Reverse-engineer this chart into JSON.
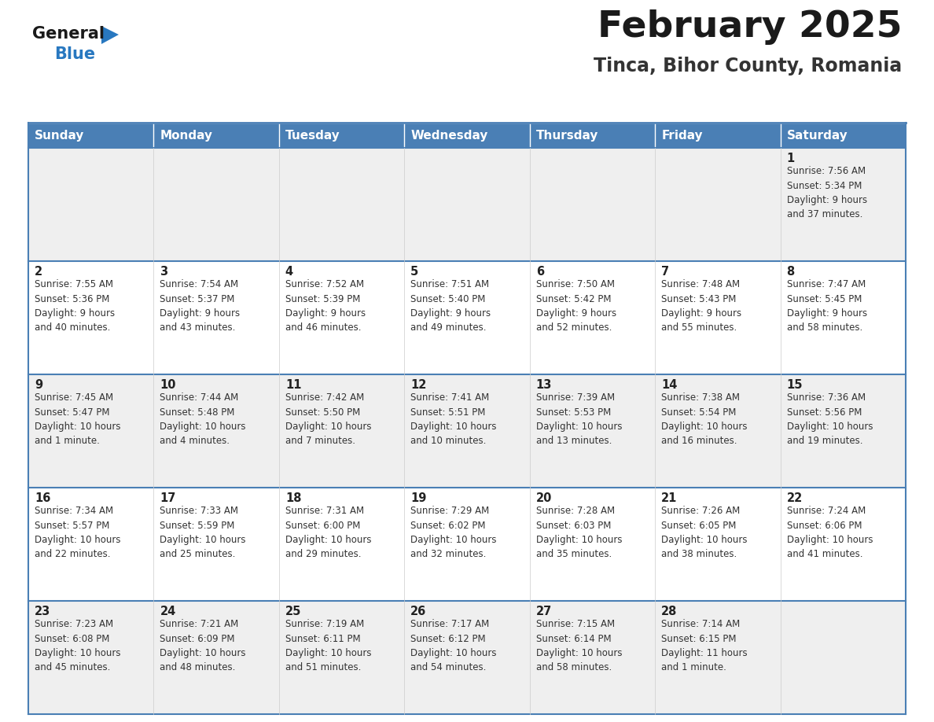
{
  "title": "February 2025",
  "subtitle": "Tinca, Bihor County, Romania",
  "days_of_week": [
    "Sunday",
    "Monday",
    "Tuesday",
    "Wednesday",
    "Thursday",
    "Friday",
    "Saturday"
  ],
  "header_bg": "#4a7fb5",
  "header_text": "#ffffff",
  "row0_bg": "#efefef",
  "row1_bg": "#ffffff",
  "row2_bg": "#efefef",
  "row3_bg": "#ffffff",
  "row4_bg": "#efefef",
  "border_color": "#4a7fb5",
  "day_number_color": "#222222",
  "info_text_color": "#333333",
  "title_color": "#1a1a1a",
  "subtitle_color": "#333333",
  "logo_general_color": "#1a1a1a",
  "logo_blue_color": "#2878c0",
  "logo_triangle_color": "#2878c0",
  "calendar_data": [
    {
      "day": 1,
      "row": 0,
      "col": 6,
      "sunrise": "7:56 AM",
      "sunset": "5:34 PM",
      "daylight": "9 hours\nand 37 minutes."
    },
    {
      "day": 2,
      "row": 1,
      "col": 0,
      "sunrise": "7:55 AM",
      "sunset": "5:36 PM",
      "daylight": "9 hours\nand 40 minutes."
    },
    {
      "day": 3,
      "row": 1,
      "col": 1,
      "sunrise": "7:54 AM",
      "sunset": "5:37 PM",
      "daylight": "9 hours\nand 43 minutes."
    },
    {
      "day": 4,
      "row": 1,
      "col": 2,
      "sunrise": "7:52 AM",
      "sunset": "5:39 PM",
      "daylight": "9 hours\nand 46 minutes."
    },
    {
      "day": 5,
      "row": 1,
      "col": 3,
      "sunrise": "7:51 AM",
      "sunset": "5:40 PM",
      "daylight": "9 hours\nand 49 minutes."
    },
    {
      "day": 6,
      "row": 1,
      "col": 4,
      "sunrise": "7:50 AM",
      "sunset": "5:42 PM",
      "daylight": "9 hours\nand 52 minutes."
    },
    {
      "day": 7,
      "row": 1,
      "col": 5,
      "sunrise": "7:48 AM",
      "sunset": "5:43 PM",
      "daylight": "9 hours\nand 55 minutes."
    },
    {
      "day": 8,
      "row": 1,
      "col": 6,
      "sunrise": "7:47 AM",
      "sunset": "5:45 PM",
      "daylight": "9 hours\nand 58 minutes."
    },
    {
      "day": 9,
      "row": 2,
      "col": 0,
      "sunrise": "7:45 AM",
      "sunset": "5:47 PM",
      "daylight": "10 hours\nand 1 minute."
    },
    {
      "day": 10,
      "row": 2,
      "col": 1,
      "sunrise": "7:44 AM",
      "sunset": "5:48 PM",
      "daylight": "10 hours\nand 4 minutes."
    },
    {
      "day": 11,
      "row": 2,
      "col": 2,
      "sunrise": "7:42 AM",
      "sunset": "5:50 PM",
      "daylight": "10 hours\nand 7 minutes."
    },
    {
      "day": 12,
      "row": 2,
      "col": 3,
      "sunrise": "7:41 AM",
      "sunset": "5:51 PM",
      "daylight": "10 hours\nand 10 minutes."
    },
    {
      "day": 13,
      "row": 2,
      "col": 4,
      "sunrise": "7:39 AM",
      "sunset": "5:53 PM",
      "daylight": "10 hours\nand 13 minutes."
    },
    {
      "day": 14,
      "row": 2,
      "col": 5,
      "sunrise": "7:38 AM",
      "sunset": "5:54 PM",
      "daylight": "10 hours\nand 16 minutes."
    },
    {
      "day": 15,
      "row": 2,
      "col": 6,
      "sunrise": "7:36 AM",
      "sunset": "5:56 PM",
      "daylight": "10 hours\nand 19 minutes."
    },
    {
      "day": 16,
      "row": 3,
      "col": 0,
      "sunrise": "7:34 AM",
      "sunset": "5:57 PM",
      "daylight": "10 hours\nand 22 minutes."
    },
    {
      "day": 17,
      "row": 3,
      "col": 1,
      "sunrise": "7:33 AM",
      "sunset": "5:59 PM",
      "daylight": "10 hours\nand 25 minutes."
    },
    {
      "day": 18,
      "row": 3,
      "col": 2,
      "sunrise": "7:31 AM",
      "sunset": "6:00 PM",
      "daylight": "10 hours\nand 29 minutes."
    },
    {
      "day": 19,
      "row": 3,
      "col": 3,
      "sunrise": "7:29 AM",
      "sunset": "6:02 PM",
      "daylight": "10 hours\nand 32 minutes."
    },
    {
      "day": 20,
      "row": 3,
      "col": 4,
      "sunrise": "7:28 AM",
      "sunset": "6:03 PM",
      "daylight": "10 hours\nand 35 minutes."
    },
    {
      "day": 21,
      "row": 3,
      "col": 5,
      "sunrise": "7:26 AM",
      "sunset": "6:05 PM",
      "daylight": "10 hours\nand 38 minutes."
    },
    {
      "day": 22,
      "row": 3,
      "col": 6,
      "sunrise": "7:24 AM",
      "sunset": "6:06 PM",
      "daylight": "10 hours\nand 41 minutes."
    },
    {
      "day": 23,
      "row": 4,
      "col": 0,
      "sunrise": "7:23 AM",
      "sunset": "6:08 PM",
      "daylight": "10 hours\nand 45 minutes."
    },
    {
      "day": 24,
      "row": 4,
      "col": 1,
      "sunrise": "7:21 AM",
      "sunset": "6:09 PM",
      "daylight": "10 hours\nand 48 minutes."
    },
    {
      "day": 25,
      "row": 4,
      "col": 2,
      "sunrise": "7:19 AM",
      "sunset": "6:11 PM",
      "daylight": "10 hours\nand 51 minutes."
    },
    {
      "day": 26,
      "row": 4,
      "col": 3,
      "sunrise": "7:17 AM",
      "sunset": "6:12 PM",
      "daylight": "10 hours\nand 54 minutes."
    },
    {
      "day": 27,
      "row": 4,
      "col": 4,
      "sunrise": "7:15 AM",
      "sunset": "6:14 PM",
      "daylight": "10 hours\nand 58 minutes."
    },
    {
      "day": 28,
      "row": 4,
      "col": 5,
      "sunrise": "7:14 AM",
      "sunset": "6:15 PM",
      "daylight": "11 hours\nand 1 minute."
    }
  ]
}
